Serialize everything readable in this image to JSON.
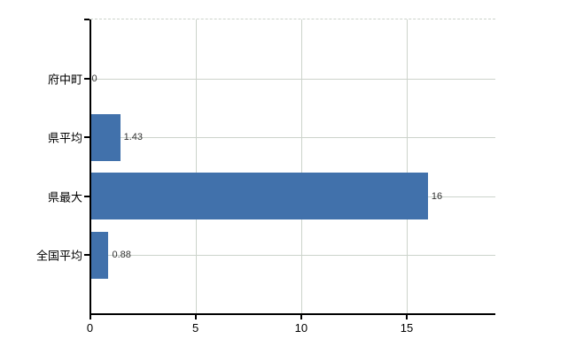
{
  "chart_data": {
    "type": "bar",
    "orientation": "horizontal",
    "title": "",
    "xlabel": "",
    "ylabel": "",
    "categories": [
      "府中町",
      "県平均",
      "県最大",
      "全国平均"
    ],
    "values": [
      0,
      1.43,
      16,
      0.88
    ],
    "value_labels": [
      "0",
      "1.43",
      "16",
      "0.88"
    ],
    "x_ticks": [
      0,
      5,
      10,
      15
    ],
    "x_tick_labels": [
      "0",
      "5",
      "10",
      "15"
    ],
    "xlim": [
      0,
      19.2
    ],
    "grid": true,
    "legend": false,
    "bar_color": "#4171ab",
    "gridline_color": "#ccd3cb",
    "axis_color": "#000000",
    "label_color": "#000000",
    "value_label_color": "#333333",
    "background_color": "#ffffff",
    "top_border_style": "dashed"
  }
}
